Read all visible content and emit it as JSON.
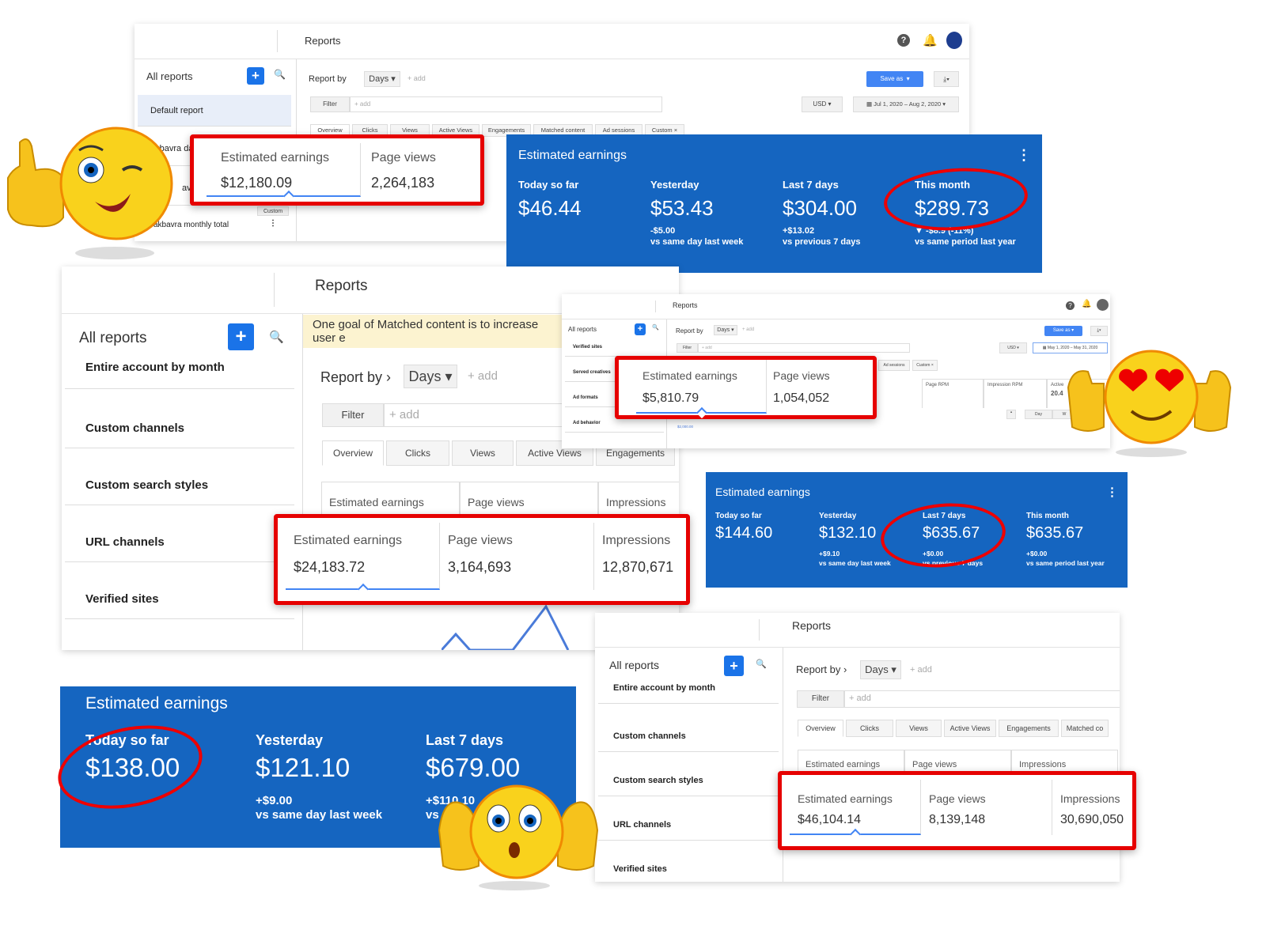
{
  "panel1": {
    "header_title": "Reports",
    "all_reports": "All reports",
    "sidebar": [
      "Default report",
      "akbavra da",
      "avra m",
      "akbavra monthly total"
    ],
    "custom_badge": "Custom",
    "report_by": "Report by",
    "days": "Days",
    "add": "+ add",
    "save_as": "Save as",
    "filter": "Filter",
    "filter_add": "+ add",
    "currency": "USD",
    "date_range": "Jul 1, 2020 – Aug 2, 2020",
    "tabs": [
      "Overview",
      "Clicks",
      "Views",
      "Active Views",
      "Engagements",
      "Matched content",
      "Ad sessions",
      "Custom"
    ]
  },
  "highlight1": {
    "metrics": [
      {
        "label": "Estimated earnings",
        "value": "$12,180.09"
      },
      {
        "label": "Page views",
        "value": "2,264,183"
      }
    ]
  },
  "earnings_card1": {
    "title": "Estimated earnings",
    "items": [
      {
        "label": "Today so far",
        "value": "$46.44"
      },
      {
        "label": "Yesterday",
        "value": "$53.43",
        "change": "-$5.00",
        "compare": "vs same day last week"
      },
      {
        "label": "Last 7 days",
        "value": "$304.00",
        "change": "+$13.02",
        "compare": "vs previous 7 days"
      },
      {
        "label": "This month",
        "value": "$289.73",
        "change": "▼ -$8.9 (-11%)",
        "compare": "vs same period last year"
      }
    ]
  },
  "panel2": {
    "header_title": "Reports",
    "all_reports": "All reports",
    "banner": "One goal of Matched content is to increase user e",
    "sidebar": [
      "Entire account by month",
      "Custom channels",
      "Custom search styles",
      "URL channels",
      "Verified sites"
    ],
    "report_by": "Report by",
    "days": "Days",
    "add": "+ add",
    "filter": "Filter",
    "filter_add": "+ add",
    "tabs": [
      "Overview",
      "Clicks",
      "Views",
      "Active Views",
      "Engagements"
    ],
    "metric_headers": [
      "Estimated earnings",
      "Page views",
      "Impressions"
    ]
  },
  "highlight2": {
    "metrics": [
      {
        "label": "Estimated earnings",
        "value": "$24,183.72"
      },
      {
        "label": "Page views",
        "value": "3,164,693"
      },
      {
        "label": "Impressions",
        "value": "12,870,671"
      }
    ]
  },
  "panel3": {
    "header_title": "Reports",
    "all_reports": "All reports",
    "sidebar": [
      "Verified sites",
      "Served creatives",
      "Ad formats",
      "Ad behavior"
    ],
    "report_by": "Report by",
    "days": "Days",
    "add": "+ add",
    "save_as": "Save as",
    "filter": "Filter",
    "filter_add": "+ add",
    "currency": "USD",
    "date_range": "May 1, 2020 – May 31, 2020",
    "tabs": [
      "Ad sessions",
      "Custom"
    ],
    "metric_headers": [
      "Page RPM",
      "Impression RPM",
      "Active"
    ],
    "active_value": "20.4",
    "chart_axis_label": "$2,000.00",
    "day_button": "Day",
    "week_button": "W"
  },
  "highlight3": {
    "metrics": [
      {
        "label": "Estimated earnings",
        "value": "$5,810.79"
      },
      {
        "label": "Page views",
        "value": "1,054,052"
      }
    ]
  },
  "earnings_card2": {
    "title": "Estimated earnings",
    "items": [
      {
        "label": "Today so far",
        "value": "$144.60"
      },
      {
        "label": "Yesterday",
        "value": "$132.10",
        "change": "+$9.10",
        "compare": "vs same day last week"
      },
      {
        "label": "Last 7 days",
        "value": "$635.67",
        "change": "+$0.00",
        "compare": "vs previous 7 days"
      },
      {
        "label": "This month",
        "value": "$635.67",
        "change": "+$0.00",
        "compare": "vs same period last year"
      }
    ]
  },
  "earnings_card3": {
    "title": "Estimated earnings",
    "items": [
      {
        "label": "Today so far",
        "value": "$138.00"
      },
      {
        "label": "Yesterday",
        "value": "$121.10",
        "change": "+$9.00",
        "compare": "vs same day last week"
      },
      {
        "label": "Last 7 days",
        "value": "$679.00",
        "change": "+$110.10",
        "compare": "vs"
      }
    ]
  },
  "panel4": {
    "header_title": "Reports",
    "all_reports": "All reports",
    "sidebar": [
      "Entire account by month",
      "Custom channels",
      "Custom search styles",
      "URL channels",
      "Verified sites"
    ],
    "report_by": "Report by",
    "days": "Days",
    "add": "+ add",
    "filter": "Filter",
    "filter_add": "+ add",
    "tabs": [
      "Overview",
      "Clicks",
      "Views",
      "Active Views",
      "Engagements",
      "Matched co"
    ],
    "metric_headers": [
      "Estimated earnings",
      "Page views",
      "Impressions"
    ]
  },
  "highlight4": {
    "metrics": [
      {
        "label": "Estimated earnings",
        "value": "$46,104.14"
      },
      {
        "label": "Page views",
        "value": "8,139,148"
      },
      {
        "label": "Impressions",
        "value": "30,690,050"
      }
    ]
  },
  "colors": {
    "card_blue": "#1565c0",
    "highlight_red": "#e60000",
    "accent_blue": "#1a73e8"
  },
  "icons": [
    "help-icon",
    "bell-icon",
    "avatar",
    "plus-icon",
    "search-icon",
    "download-icon",
    "calendar-icon",
    "more-vert-icon",
    "wink-thumbs-up-emoji",
    "heart-eyes-thumbs-up-emoji",
    "shocked-hands-emoji"
  ]
}
